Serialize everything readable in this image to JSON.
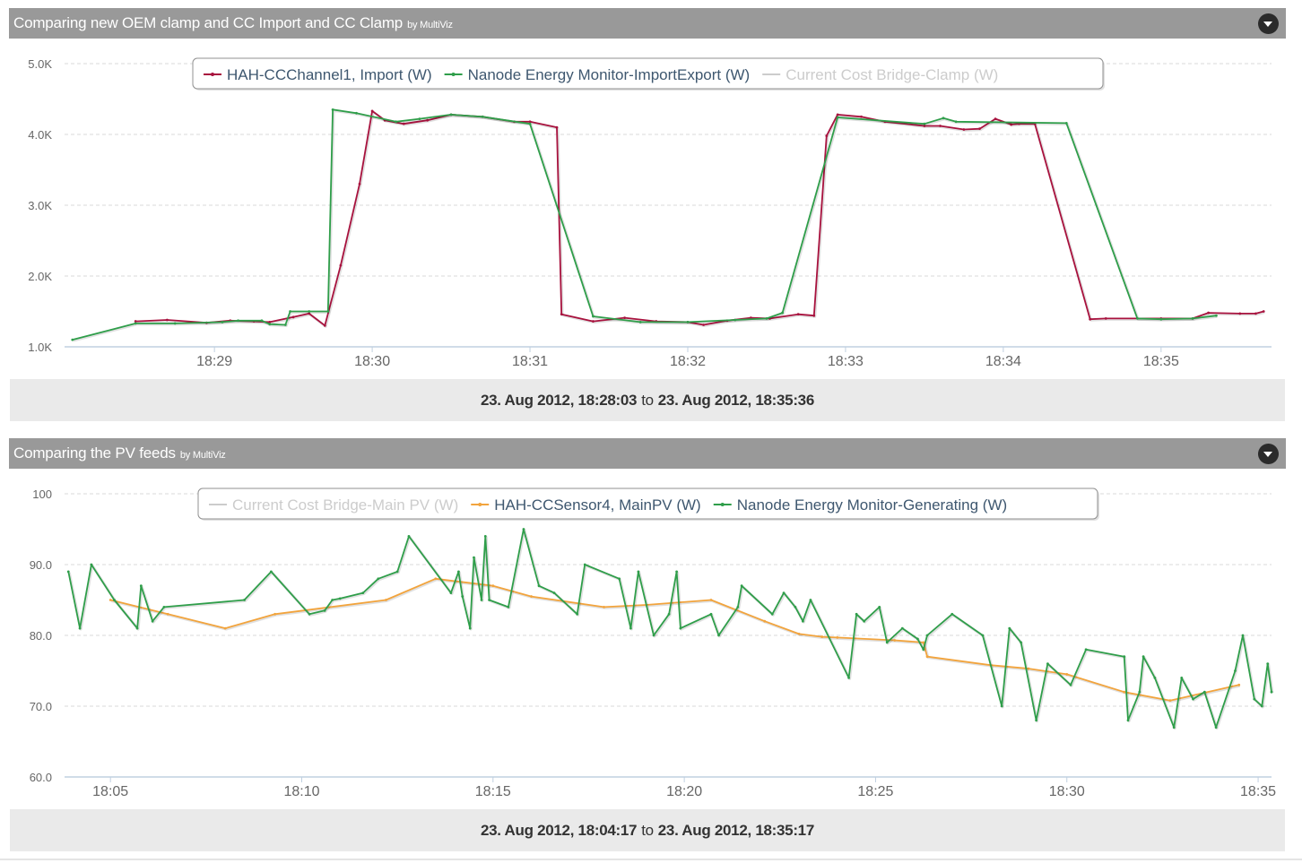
{
  "panels": [
    {
      "title": "Comparing new OEM clamp and CC Import and CC Clamp",
      "by_label": "by MultiViz",
      "range": {
        "from": "23. Aug 2012, 18:28:03",
        "to_word": "to",
        "to": "23. Aug 2012, 18:35:36"
      }
    },
    {
      "title": "Comparing the PV feeds",
      "by_label": "by MultiViz",
      "range": {
        "from": "23. Aug 2012, 18:04:17",
        "to_word": "to",
        "to": "23. Aug 2012, 18:35:17"
      }
    }
  ],
  "chart_data": [
    {
      "type": "line",
      "x_unit": "minutes after 18:00",
      "xlim": [
        28.05,
        35.7
      ],
      "ylim": [
        1000,
        5000
      ],
      "y_ticks": [
        {
          "value": 1000,
          "label": "1.0K"
        },
        {
          "value": 2000,
          "label": "2.0K"
        },
        {
          "value": 3000,
          "label": "3.0K"
        },
        {
          "value": 4000,
          "label": "4.0K"
        },
        {
          "value": 5000,
          "label": "5.0K"
        }
      ],
      "x_ticks": [
        {
          "value": 29,
          "label": "18:29"
        },
        {
          "value": 30,
          "label": "18:30"
        },
        {
          "value": 31,
          "label": "18:31"
        },
        {
          "value": 32,
          "label": "18:32"
        },
        {
          "value": 33,
          "label": "18:33"
        },
        {
          "value": 34,
          "label": "18:34"
        },
        {
          "value": 35,
          "label": "18:35"
        }
      ],
      "grid": true,
      "legend_position": "top-center",
      "series": [
        {
          "name": "HAH-CCChannel1, Import (W)",
          "color": "#a8123e",
          "visible": true,
          "points": [
            [
              28.5,
              1360
            ],
            [
              28.7,
              1380
            ],
            [
              28.95,
              1340
            ],
            [
              29.1,
              1370
            ],
            [
              29.25,
              1360
            ],
            [
              29.35,
              1350
            ],
            [
              29.5,
              1420
            ],
            [
              29.6,
              1470
            ],
            [
              29.7,
              1300
            ],
            [
              29.8,
              2150
            ],
            [
              29.92,
              3300
            ],
            [
              30.0,
              4330
            ],
            [
              30.08,
              4200
            ],
            [
              30.2,
              4150
            ],
            [
              30.35,
              4200
            ],
            [
              30.5,
              4280
            ],
            [
              30.7,
              4250
            ],
            [
              30.9,
              4180
            ],
            [
              31.0,
              4180
            ],
            [
              31.17,
              4100
            ],
            [
              31.2,
              1460
            ],
            [
              31.4,
              1360
            ],
            [
              31.6,
              1410
            ],
            [
              31.8,
              1360
            ],
            [
              32.0,
              1350
            ],
            [
              32.1,
              1310
            ],
            [
              32.25,
              1370
            ],
            [
              32.4,
              1410
            ],
            [
              32.52,
              1400
            ],
            [
              32.7,
              1460
            ],
            [
              32.8,
              1440
            ],
            [
              32.88,
              3980
            ],
            [
              32.95,
              4280
            ],
            [
              33.1,
              4250
            ],
            [
              33.25,
              4180
            ],
            [
              33.5,
              4120
            ],
            [
              33.6,
              4120
            ],
            [
              33.75,
              4070
            ],
            [
              33.85,
              4080
            ],
            [
              33.95,
              4220
            ],
            [
              34.05,
              4140
            ],
            [
              34.1,
              4150
            ],
            [
              34.2,
              4150
            ],
            [
              34.55,
              1390
            ],
            [
              34.65,
              1400
            ],
            [
              35.0,
              1400
            ],
            [
              35.2,
              1400
            ],
            [
              35.3,
              1480
            ],
            [
              35.5,
              1470
            ],
            [
              35.6,
              1470
            ],
            [
              35.65,
              1500
            ]
          ]
        },
        {
          "name": "Nanode Energy Monitor-ImportExport (W)",
          "color": "#2f9e4a",
          "visible": true,
          "points": [
            [
              28.1,
              1100
            ],
            [
              28.5,
              1330
            ],
            [
              28.75,
              1330
            ],
            [
              29.05,
              1350
            ],
            [
              29.15,
              1370
            ],
            [
              29.3,
              1370
            ],
            [
              29.35,
              1320
            ],
            [
              29.45,
              1310
            ],
            [
              29.48,
              1500
            ],
            [
              29.6,
              1500
            ],
            [
              29.72,
              1500
            ],
            [
              29.75,
              4350
            ],
            [
              29.9,
              4300
            ],
            [
              30.15,
              4180
            ],
            [
              30.3,
              4220
            ],
            [
              30.5,
              4280
            ],
            [
              30.7,
              4250
            ],
            [
              31.0,
              4150
            ],
            [
              31.4,
              1430
            ],
            [
              31.7,
              1350
            ],
            [
              32.0,
              1350
            ],
            [
              32.3,
              1380
            ],
            [
              32.5,
              1400
            ],
            [
              32.6,
              1480
            ],
            [
              32.95,
              4240
            ],
            [
              33.5,
              4150
            ],
            [
              33.62,
              4230
            ],
            [
              33.7,
              4180
            ],
            [
              34.4,
              4160
            ],
            [
              34.85,
              1400
            ],
            [
              35.0,
              1390
            ],
            [
              35.2,
              1400
            ],
            [
              35.35,
              1440
            ]
          ]
        },
        {
          "name": "Current Cost Bridge-Clamp (W)",
          "color": "#cccccc",
          "visible": false,
          "points": []
        }
      ]
    },
    {
      "type": "line",
      "x_unit": "minutes after 18:00",
      "xlim": [
        3.8,
        35.35
      ],
      "ylim": [
        60,
        100
      ],
      "y_ticks": [
        {
          "value": 60,
          "label": "60.0"
        },
        {
          "value": 70,
          "label": "70.0"
        },
        {
          "value": 80,
          "label": "80.0"
        },
        {
          "value": 90,
          "label": "90.0"
        },
        {
          "value": 100,
          "label": "100"
        }
      ],
      "x_ticks": [
        {
          "value": 5,
          "label": "18:05"
        },
        {
          "value": 10,
          "label": "18:10"
        },
        {
          "value": 15,
          "label": "18:15"
        },
        {
          "value": 20,
          "label": "18:20"
        },
        {
          "value": 25,
          "label": "18:25"
        },
        {
          "value": 30,
          "label": "18:30"
        },
        {
          "value": 35,
          "label": "18:35"
        }
      ],
      "grid": true,
      "legend_position": "top-center",
      "series": [
        {
          "name": "Current Cost Bridge-Main PV (W)",
          "color": "#cccccc",
          "visible": false,
          "points": []
        },
        {
          "name": "HAH-CCSensor4, MainPV (W)",
          "color": "#f2a43d",
          "visible": true,
          "points": [
            [
              5.0,
              85
            ],
            [
              6.5,
              83
            ],
            [
              8.0,
              81
            ],
            [
              9.3,
              83
            ],
            [
              12.2,
              85
            ],
            [
              13.5,
              88
            ],
            [
              15.0,
              87
            ],
            [
              16.0,
              85.5
            ],
            [
              17.9,
              84
            ],
            [
              19.0,
              84.3
            ],
            [
              20.7,
              85
            ],
            [
              22.1,
              82
            ],
            [
              23.0,
              80.2
            ],
            [
              23.6,
              79.8
            ],
            [
              24.0,
              79.7
            ],
            [
              25.5,
              79.3
            ],
            [
              26.25,
              79
            ],
            [
              26.35,
              77
            ],
            [
              28.0,
              75.8
            ],
            [
              29.0,
              75.3
            ],
            [
              30.0,
              74.5
            ],
            [
              31.5,
              72
            ],
            [
              32.7,
              70.8
            ],
            [
              34.5,
              73
            ]
          ]
        },
        {
          "name": "Nanode Energy Monitor-Generating (W)",
          "color": "#2f9e4a",
          "visible": true,
          "points": [
            [
              3.9,
              89
            ],
            [
              4.2,
              81
            ],
            [
              4.5,
              90
            ],
            [
              5.1,
              85
            ],
            [
              5.7,
              81
            ],
            [
              5.8,
              87
            ],
            [
              6.1,
              82
            ],
            [
              6.4,
              84
            ],
            [
              8.5,
              85
            ],
            [
              9.2,
              89
            ],
            [
              10.2,
              83
            ],
            [
              10.6,
              83.5
            ],
            [
              10.8,
              85
            ],
            [
              11.0,
              85.2
            ],
            [
              11.6,
              86
            ],
            [
              12.0,
              88
            ],
            [
              12.5,
              89
            ],
            [
              12.8,
              94
            ],
            [
              13.9,
              86
            ],
            [
              14.1,
              89
            ],
            [
              14.2,
              85.5
            ],
            [
              14.4,
              81
            ],
            [
              14.5,
              91
            ],
            [
              14.7,
              85
            ],
            [
              14.8,
              94
            ],
            [
              14.9,
              85
            ],
            [
              15.4,
              84
            ],
            [
              15.8,
              95
            ],
            [
              16.2,
              87
            ],
            [
              16.6,
              86
            ],
            [
              17.2,
              83
            ],
            [
              17.4,
              90
            ],
            [
              18.3,
              88
            ],
            [
              18.6,
              81
            ],
            [
              18.8,
              89
            ],
            [
              19.2,
              80
            ],
            [
              19.6,
              83
            ],
            [
              19.8,
              89
            ],
            [
              19.9,
              81
            ],
            [
              20.7,
              83
            ],
            [
              20.9,
              80
            ],
            [
              21.4,
              84
            ],
            [
              21.5,
              87
            ],
            [
              22.3,
              83
            ],
            [
              22.6,
              86
            ],
            [
              22.9,
              84
            ],
            [
              23.1,
              82
            ],
            [
              23.3,
              85
            ],
            [
              24.3,
              74
            ],
            [
              24.5,
              83
            ],
            [
              24.7,
              82
            ],
            [
              25.1,
              84
            ],
            [
              25.3,
              79
            ],
            [
              25.7,
              81
            ],
            [
              26.1,
              79.5
            ],
            [
              26.25,
              78
            ],
            [
              26.35,
              80
            ],
            [
              27.0,
              83
            ],
            [
              27.8,
              80
            ],
            [
              28.3,
              70
            ],
            [
              28.5,
              81
            ],
            [
              28.8,
              79
            ],
            [
              29.2,
              68
            ],
            [
              29.5,
              76
            ],
            [
              30.1,
              73
            ],
            [
              30.5,
              78
            ],
            [
              31.5,
              77
            ],
            [
              31.6,
              68
            ],
            [
              31.9,
              72
            ],
            [
              32.0,
              77
            ],
            [
              32.3,
              74
            ],
            [
              32.8,
              67
            ],
            [
              33.0,
              74
            ],
            [
              33.3,
              71
            ],
            [
              33.6,
              72
            ],
            [
              33.9,
              67
            ],
            [
              34.4,
              75
            ],
            [
              34.6,
              80
            ],
            [
              34.9,
              71
            ],
            [
              35.1,
              70
            ],
            [
              35.25,
              76
            ],
            [
              35.35,
              72
            ]
          ]
        }
      ]
    }
  ]
}
